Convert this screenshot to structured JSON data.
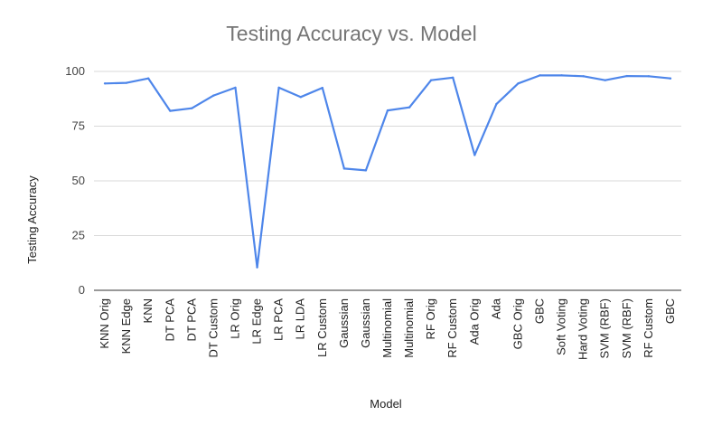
{
  "chart_data": {
    "type": "line",
    "title": "Testing Accuracy vs. Model",
    "xlabel": "Model",
    "ylabel": "Testing Accuracy",
    "ylim": [
      0,
      100
    ],
    "yticks": [
      0,
      25,
      50,
      75,
      100
    ],
    "grid": true,
    "legend": "none",
    "categories": [
      "KNN Orig",
      "KNN Edge",
      "KNN",
      "DT PCA",
      "DT PCA",
      "DT Custom",
      "LR Orig",
      "LR Edge",
      "LR PCA",
      "LR LDA",
      "LR Custom",
      "Gaussian",
      "Gaussian",
      "Multinomial",
      "Multinomial",
      "RF Orig",
      "RF Custom",
      "Ada Orig",
      "Ada",
      "GBC Orig",
      "GBC",
      "Soft Voting",
      "Hard Voting",
      "SVM (RBF)",
      "SVM (RBF)",
      "RF Custom",
      "GBC"
    ],
    "series": [
      {
        "color": "#4e86ea",
        "values": [
          94.5,
          94.8,
          96.8,
          82.0,
          83.2,
          89.0,
          92.6,
          10.5,
          92.6,
          88.3,
          92.5,
          55.6,
          54.8,
          82.2,
          83.6,
          96.0,
          97.2,
          61.8,
          85.1,
          94.5,
          98.2,
          98.2,
          97.8,
          96.0,
          97.9,
          97.8,
          96.8
        ]
      }
    ]
  }
}
